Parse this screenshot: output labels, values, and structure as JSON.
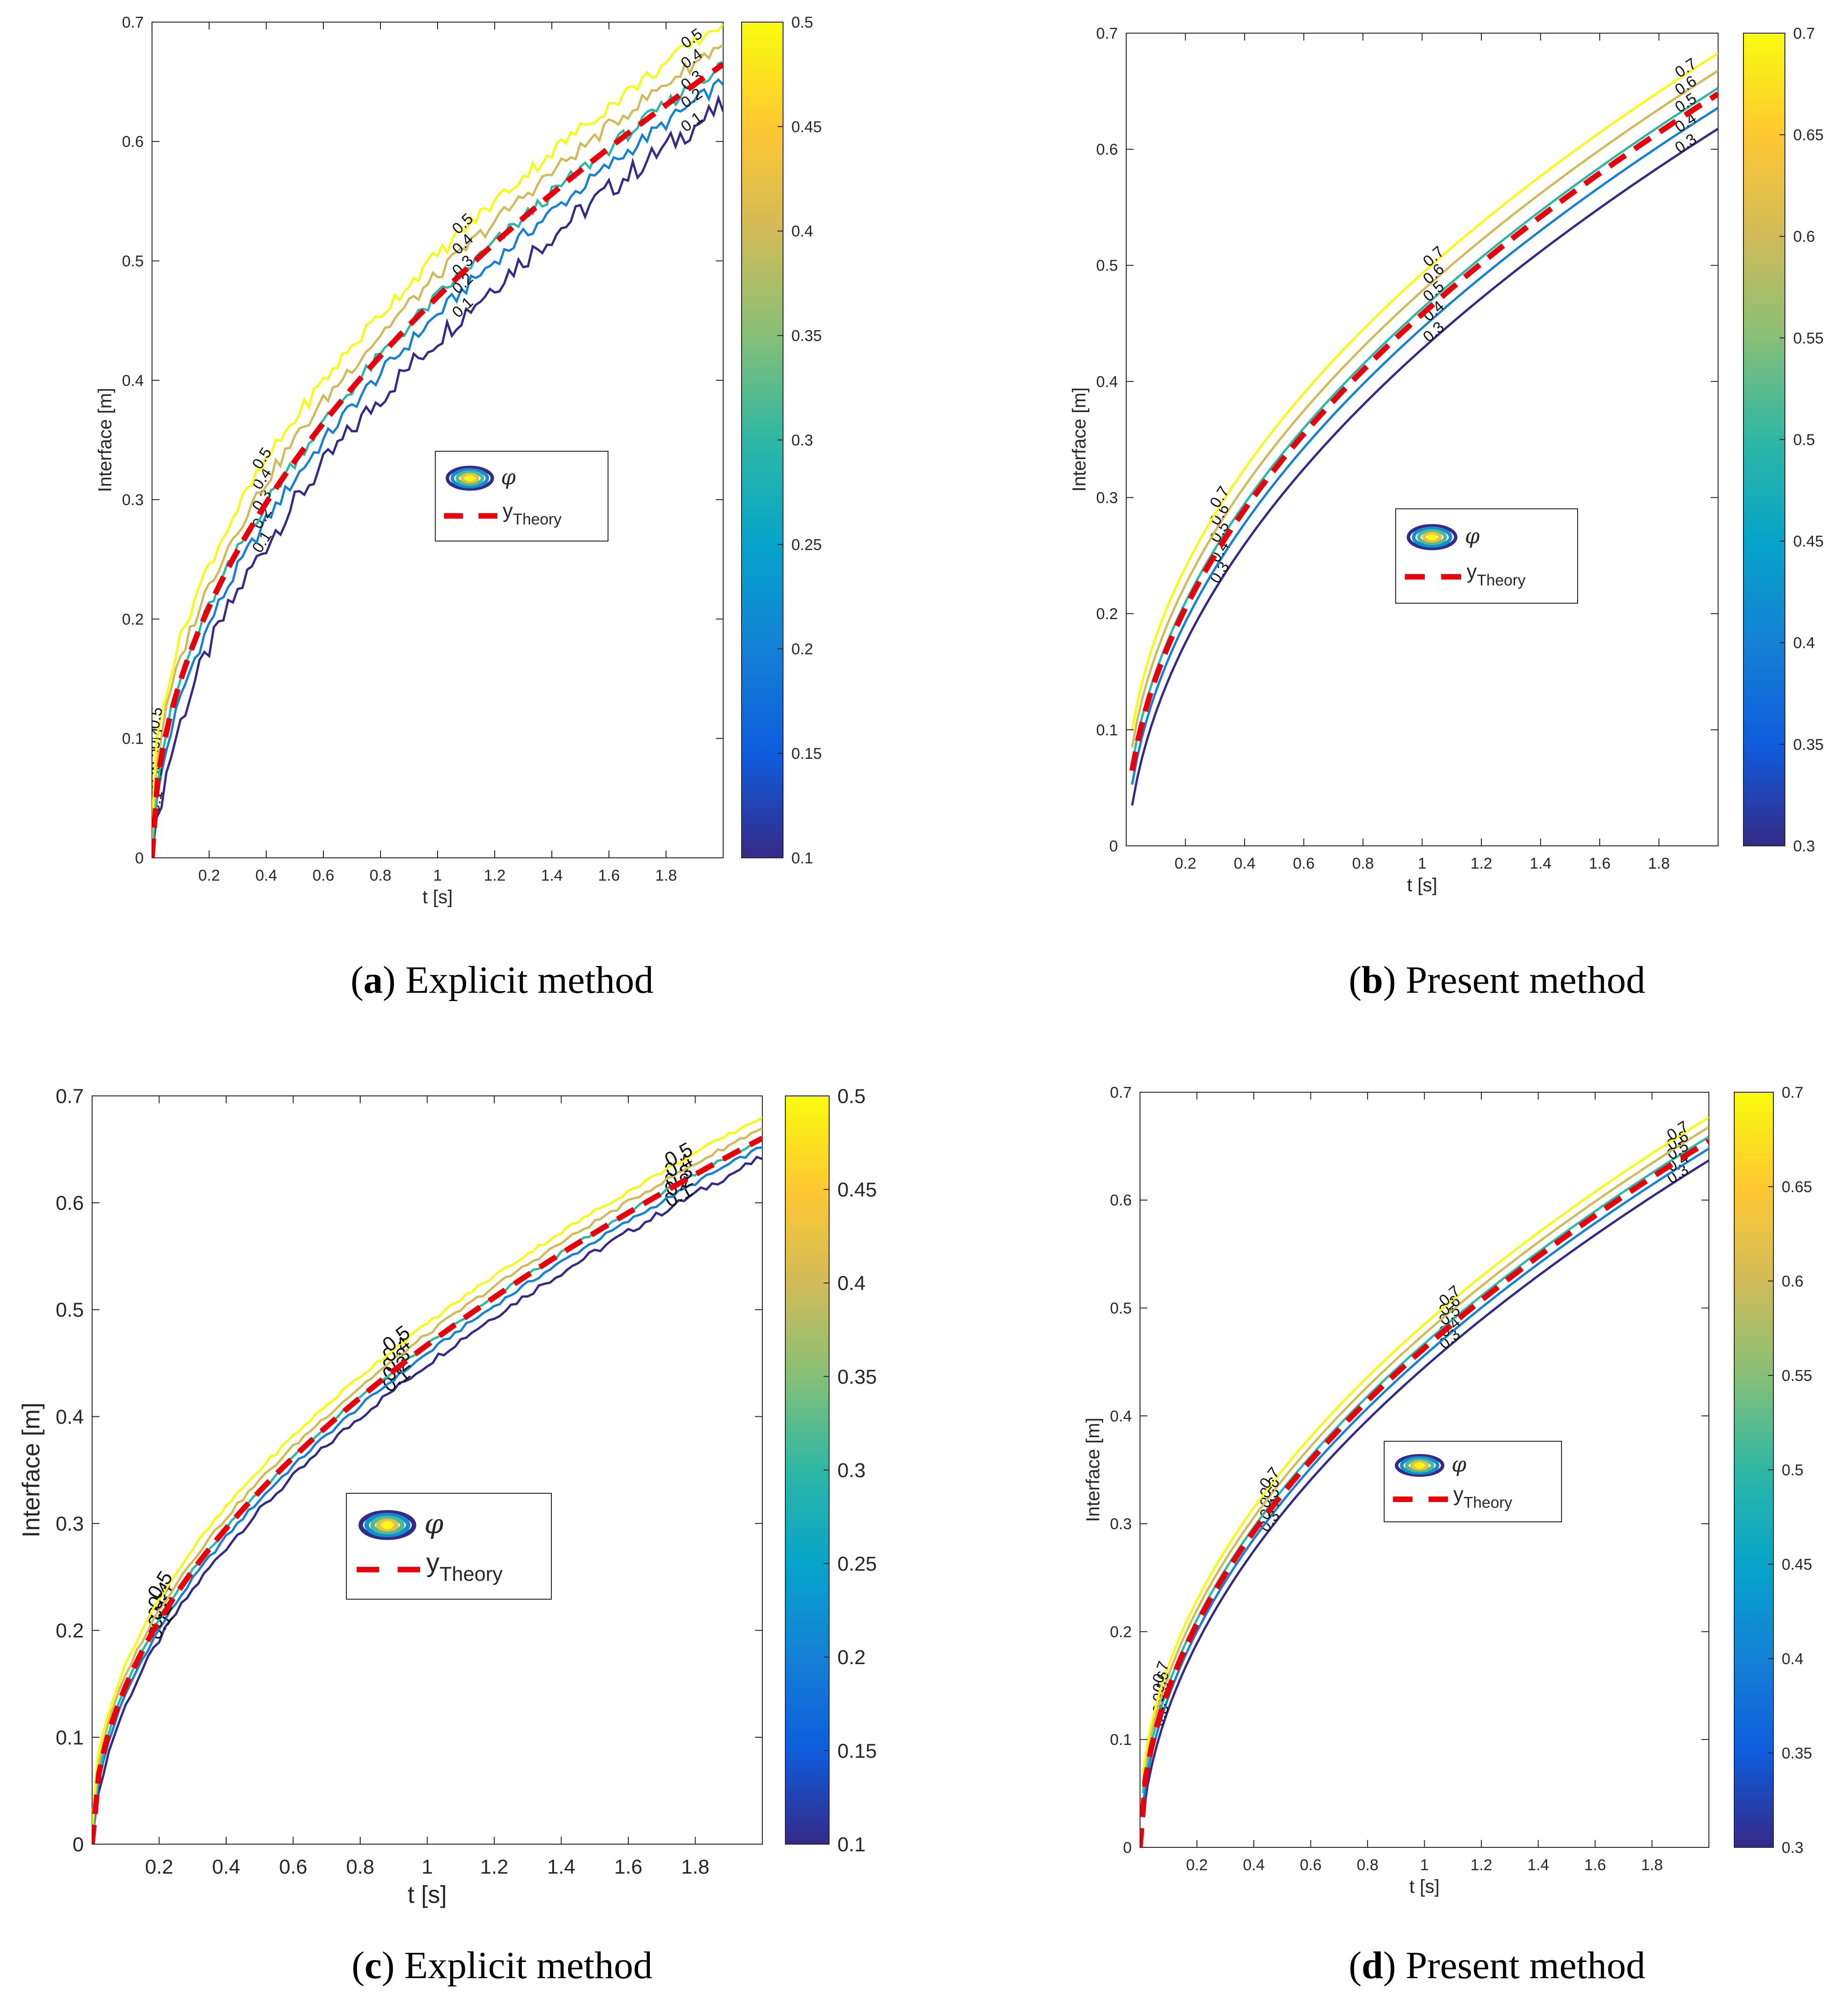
{
  "figure": {
    "panels": [
      {
        "id": "a",
        "caption_letter": "a",
        "caption_text": "Explicit method"
      },
      {
        "id": "b",
        "caption_letter": "b",
        "caption_text": "Present method"
      },
      {
        "id": "c",
        "caption_letter": "c",
        "caption_text": "Explicit method"
      },
      {
        "id": "d",
        "caption_letter": "d",
        "caption_text": "Present method"
      }
    ]
  },
  "chart_data": [
    {
      "type": "contour",
      "panel": "a",
      "xlabel": "t [s]",
      "ylabel": "Interface [m]",
      "xlim": [
        0,
        2.0
      ],
      "ylim": [
        0,
        0.7
      ],
      "xticks": [
        0.2,
        0.4,
        0.6,
        0.8,
        1,
        1.2,
        1.4,
        1.6,
        1.8
      ],
      "yticks": [
        0,
        0.1,
        0.2,
        0.3,
        0.4,
        0.5,
        0.6,
        0.7
      ],
      "colorbar": {
        "min": 0.1,
        "max": 0.5,
        "ticks": [
          0.1,
          0.15,
          0.2,
          0.25,
          0.3,
          0.35,
          0.4,
          0.45,
          0.5
        ]
      },
      "legend": {
        "placement": "center",
        "entries": [
          "φ",
          "y_Theory"
        ],
        "phi_label": "φ",
        "theory_label_main": "y",
        "theory_label_sub": "Theory"
      },
      "contour_levels": [
        0.1,
        0.2,
        0.3,
        0.4,
        0.5
      ],
      "contour_labels": [
        "0.1",
        "0.2",
        "0.3",
        "0.4",
        "0.5"
      ],
      "contour_offsets": [
        -0.035,
        -0.015,
        0.0,
        0.018,
        0.035
      ],
      "theory": {
        "coef": 0.47,
        "t_start": 0.0
      },
      "noise": 0.012,
      "t_start": 0.0,
      "label_positions_t": [
        0.03,
        0.4,
        1.1,
        1.9
      ]
    },
    {
      "type": "contour",
      "panel": "b",
      "xlabel": "t [s]",
      "ylabel": "Interface [m]",
      "xlim": [
        0,
        2.0
      ],
      "ylim": [
        0,
        0.7
      ],
      "xticks": [
        0.2,
        0.4,
        0.6,
        0.8,
        1,
        1.2,
        1.4,
        1.6,
        1.8
      ],
      "yticks": [
        0,
        0.1,
        0.2,
        0.3,
        0.4,
        0.5,
        0.6,
        0.7
      ],
      "colorbar": {
        "min": 0.3,
        "max": 0.7,
        "ticks": [
          0.3,
          0.35,
          0.4,
          0.45,
          0.5,
          0.55,
          0.6,
          0.65,
          0.7
        ]
      },
      "legend": {
        "placement": "center",
        "entries": [
          "φ",
          "y_Theory"
        ],
        "phi_label": "φ",
        "theory_label_main": "y",
        "theory_label_sub": "Theory"
      },
      "contour_levels": [
        0.3,
        0.4,
        0.5,
        0.6,
        0.7
      ],
      "contour_labels": [
        "0.3",
        "0.4",
        "0.5",
        "0.6",
        "0.7"
      ],
      "contour_offsets": [
        -0.03,
        -0.012,
        0.005,
        0.02,
        0.035
      ],
      "theory": {
        "coef": 0.458,
        "t_start": 0.02
      },
      "noise": 0.0,
      "t_start": 0.02,
      "label_positions_t": [
        0.33,
        1.05,
        1.9
      ]
    },
    {
      "type": "contour",
      "panel": "c",
      "xlabel": "t [s]",
      "ylabel": "Interface [m]",
      "xlim": [
        0,
        2.0
      ],
      "ylim": [
        0,
        0.7
      ],
      "xticks": [
        0.2,
        0.4,
        0.6,
        0.8,
        1,
        1.2,
        1.4,
        1.6,
        1.8
      ],
      "yticks": [
        0,
        0.1,
        0.2,
        0.3,
        0.4,
        0.5,
        0.6,
        0.7
      ],
      "colorbar": {
        "min": 0.1,
        "max": 0.5,
        "ticks": [
          0.1,
          0.15,
          0.2,
          0.25,
          0.3,
          0.35,
          0.4,
          0.45,
          0.5
        ]
      },
      "legend": {
        "placement": "center",
        "entries": [
          "φ",
          "y_Theory"
        ],
        "phi_label": "φ",
        "theory_label_main": "y",
        "theory_label_sub": "Theory"
      },
      "contour_levels": [
        0.1,
        0.2,
        0.3,
        0.4,
        0.5
      ],
      "contour_labels": [
        "0.1",
        "0.2",
        "0.3",
        "0.4",
        "0.5"
      ],
      "contour_offsets": [
        -0.018,
        -0.008,
        0.0,
        0.01,
        0.02
      ],
      "theory": {
        "coef": 0.467,
        "t_start": 0.0
      },
      "noise": 0.004,
      "t_start": 0.0,
      "label_positions_t": [
        0.22,
        0.92,
        1.76
      ]
    },
    {
      "type": "contour",
      "panel": "d",
      "xlabel": "t [s]",
      "ylabel": "Interface [m]",
      "xlim": [
        0,
        2.0
      ],
      "ylim": [
        0,
        0.7
      ],
      "xticks": [
        0.2,
        0.4,
        0.6,
        0.8,
        1,
        1.2,
        1.4,
        1.6,
        1.8
      ],
      "yticks": [
        0,
        0.1,
        0.2,
        0.3,
        0.4,
        0.5,
        0.6,
        0.7
      ],
      "colorbar": {
        "min": 0.3,
        "max": 0.7,
        "ticks": [
          0.3,
          0.35,
          0.4,
          0.45,
          0.5,
          0.55,
          0.6,
          0.65,
          0.7
        ]
      },
      "legend": {
        "placement": "center",
        "entries": [
          "φ",
          "y_Theory"
        ],
        "phi_label": "φ",
        "theory_label_main": "y",
        "theory_label_sub": "Theory"
      },
      "contour_levels": [
        0.3,
        0.4,
        0.5,
        0.6,
        0.7
      ],
      "contour_labels": [
        "0.3",
        "0.4",
        "0.5",
        "0.6",
        "0.7"
      ],
      "contour_offsets": [
        -0.018,
        -0.007,
        0.004,
        0.013,
        0.022
      ],
      "theory": {
        "coef": 0.463,
        "t_start": 0.0
      },
      "noise": 0.0,
      "t_start": 0.01,
      "label_positions_t": [
        0.09,
        0.47,
        1.1,
        1.9
      ]
    }
  ],
  "colors": {
    "parula": [
      "#352a87",
      "#0f5cdd",
      "#1481d6",
      "#06a4ca",
      "#2eb7a4",
      "#87bf77",
      "#d1bb59",
      "#fec832",
      "#f9fb0e"
    ],
    "theory": "#e8000b",
    "axis": "#262626",
    "text": "#262626"
  }
}
